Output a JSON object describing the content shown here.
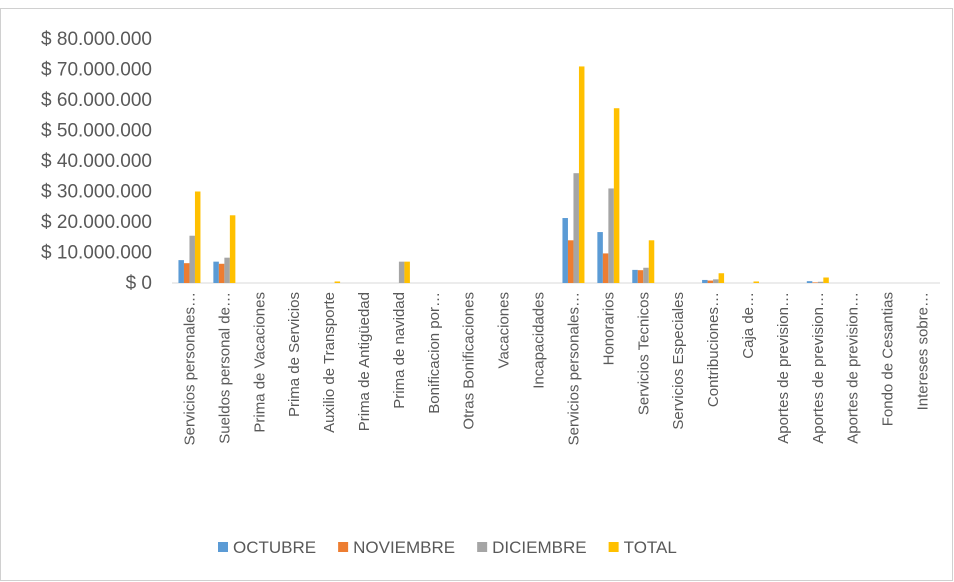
{
  "chart_data": {
    "type": "bar",
    "categories": [
      "Servicios personales…",
      "Sueldos personal de…",
      "Prima de Vacaciones",
      "Prima de Servicios",
      "Auxilio de Transporte",
      "Prima de Antigüedad",
      "Prima de navidad",
      "Bonificacion por…",
      "Otras Bonificaciones",
      "Vacaciones",
      "Incapacidades",
      "Servicios personales…",
      "Honorarios",
      "Servicios Tecnicos",
      "Servicios Especiales",
      "Contribuciones…",
      "Caja de…",
      "Aportes de prevision…",
      "Aportes de prevision…",
      "Aportes de prevision…",
      "Fondo de Cesantias",
      "Intereses sobre…"
    ],
    "series": [
      {
        "name": "OCTUBRE",
        "color": "#5b9bd5",
        "values": [
          7500000,
          7000000,
          0,
          0,
          0,
          0,
          0,
          0,
          0,
          0,
          0,
          21300000,
          16700000,
          4300000,
          0,
          1000000,
          0,
          0,
          600000,
          0,
          0,
          0
        ]
      },
      {
        "name": "NOVIEMBRE",
        "color": "#ed7d31",
        "values": [
          6500000,
          6300000,
          0,
          0,
          0,
          0,
          0,
          0,
          0,
          0,
          0,
          14000000,
          9700000,
          4200000,
          0,
          800000,
          0,
          0,
          200000,
          0,
          0,
          0
        ]
      },
      {
        "name": "DICIEMBRE",
        "color": "#a5a5a5",
        "values": [
          15500000,
          8300000,
          0,
          0,
          0,
          0,
          7000000,
          0,
          0,
          0,
          0,
          36000000,
          31000000,
          5000000,
          0,
          1200000,
          0,
          0,
          400000,
          0,
          0,
          0
        ]
      },
      {
        "name": "TOTAL",
        "color": "#ffc000",
        "values": [
          30000000,
          22200000,
          0,
          0,
          500000,
          0,
          7000000,
          0,
          0,
          0,
          0,
          71000000,
          57300000,
          14000000,
          0,
          3200000,
          500000,
          0,
          1800000,
          0,
          0,
          0
        ]
      }
    ],
    "ylim": [
      0,
      80000000
    ],
    "yticks": [
      {
        "value": 0,
        "label": "$ 0"
      },
      {
        "value": 10000000,
        "label": "$ 10.000.000"
      },
      {
        "value": 20000000,
        "label": "$ 20.000.000"
      },
      {
        "value": 30000000,
        "label": "$ 30.000.000"
      },
      {
        "value": 40000000,
        "label": "$ 40.000.000"
      },
      {
        "value": 50000000,
        "label": "$ 50.000.000"
      },
      {
        "value": 60000000,
        "label": "$ 60.000.000"
      },
      {
        "value": 70000000,
        "label": "$ 70.000.000"
      },
      {
        "value": 80000000,
        "label": "$ 80.000.000"
      }
    ],
    "grid": false,
    "legend": "bottom"
  }
}
